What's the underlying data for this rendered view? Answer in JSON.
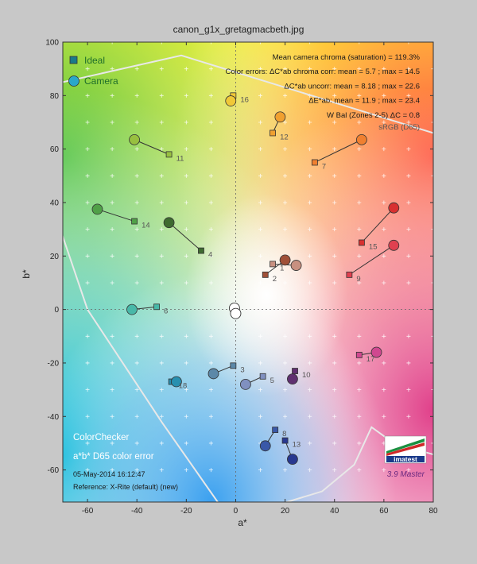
{
  "title": "canon_g1x_gretagmacbeth.jpg",
  "chart_data": {
    "type": "scatter",
    "xlabel": "a*",
    "ylabel": "b*",
    "xlim": [
      -70,
      80
    ],
    "ylim": [
      -72,
      100
    ],
    "xticks": [
      -60,
      -40,
      -20,
      0,
      20,
      40,
      60,
      80
    ],
    "yticks": [
      -60,
      -40,
      -20,
      0,
      20,
      40,
      60,
      80,
      100
    ],
    "legend": [
      {
        "name": "Ideal",
        "marker": "square"
      },
      {
        "name": "Camera",
        "marker": "circle"
      }
    ],
    "legend_position": "top-left",
    "stats": [
      "Mean camera chroma (saturation) = 119.3%",
      "Color errors: ΔC*ab chroma corr:  mean = 5.7 ;  max = 14.5",
      "ΔC*ab uncorr:  mean = 8.18 ;  max = 22.6",
      "ΔE*ab:  mean = 11.9 ;  max = 23.4",
      "W Bal (Zones 2-5) ΔC = 0.8"
    ],
    "gamut_label": "sRGB (D65)",
    "patches": [
      {
        "n": "1",
        "ideal": [
          15,
          17
        ],
        "camera": [
          24.5,
          16.5
        ],
        "color": "#c89080"
      },
      {
        "n": "2",
        "ideal": [
          12,
          13
        ],
        "camera": [
          20,
          18.5
        ],
        "color": "#a05038"
      },
      {
        "n": "3",
        "ideal": [
          -1,
          -21
        ],
        "camera": [
          -9,
          -24
        ],
        "color": "#5c88a8"
      },
      {
        "n": "4",
        "ideal": [
          -14,
          22
        ],
        "camera": [
          -27,
          32.5
        ],
        "color": "#3e6a30"
      },
      {
        "n": "5",
        "ideal": [
          11,
          -25
        ],
        "camera": [
          4,
          -28
        ],
        "color": "#8090c0"
      },
      {
        "n": "6",
        "ideal": [
          -32,
          1
        ],
        "camera": [
          -42,
          0
        ],
        "color": "#48b8a8"
      },
      {
        "n": "7",
        "ideal": [
          32,
          55
        ],
        "camera": [
          51,
          63.5
        ],
        "color": "#f08030"
      },
      {
        "n": "8",
        "ideal": [
          16,
          -45
        ],
        "camera": [
          12,
          -51
        ],
        "color": "#3a58a8"
      },
      {
        "n": "9",
        "ideal": [
          46,
          13
        ],
        "camera": [
          64,
          24
        ],
        "color": "#e04050"
      },
      {
        "n": "10",
        "ideal": [
          24,
          -23
        ],
        "camera": [
          23,
          -26
        ],
        "color": "#603070"
      },
      {
        "n": "11",
        "ideal": [
          -27,
          58
        ],
        "camera": [
          -41,
          63.5
        ],
        "color": "#98c040"
      },
      {
        "n": "12",
        "ideal": [
          15,
          66
        ],
        "camera": [
          18,
          72
        ],
        "color": "#f0a030"
      },
      {
        "n": "13",
        "ideal": [
          20,
          -49
        ],
        "camera": [
          23,
          -56
        ],
        "color": "#283890"
      },
      {
        "n": "14",
        "ideal": [
          -41,
          33
        ],
        "camera": [
          -56,
          37.5
        ],
        "color": "#50a048"
      },
      {
        "n": "15",
        "ideal": [
          51,
          25
        ],
        "camera": [
          64,
          38
        ],
        "color": "#d83030"
      },
      {
        "n": "16",
        "ideal": [
          -1,
          80
        ],
        "camera": [
          -2,
          78
        ],
        "color": "#f0c838"
      },
      {
        "n": "17",
        "ideal": [
          50,
          -17
        ],
        "camera": [
          57,
          -16
        ],
        "color": "#d04890"
      },
      {
        "n": "18",
        "ideal": [
          -26,
          -27
        ],
        "camera": [
          -24,
          -27
        ],
        "color": "#2890b0"
      }
    ],
    "neutrals": [
      [
        -0.5,
        0.5
      ],
      [
        0,
        -1.5
      ]
    ]
  },
  "notes": {
    "colorchecker": "ColorChecker",
    "subtitle": "a*b* D65 color error",
    "datetime": "05-May-2014 16:12:47",
    "reference": "Reference: X-Rite (default) (new)"
  },
  "logo": {
    "text": "imatest",
    "version": "3.9 Master"
  }
}
